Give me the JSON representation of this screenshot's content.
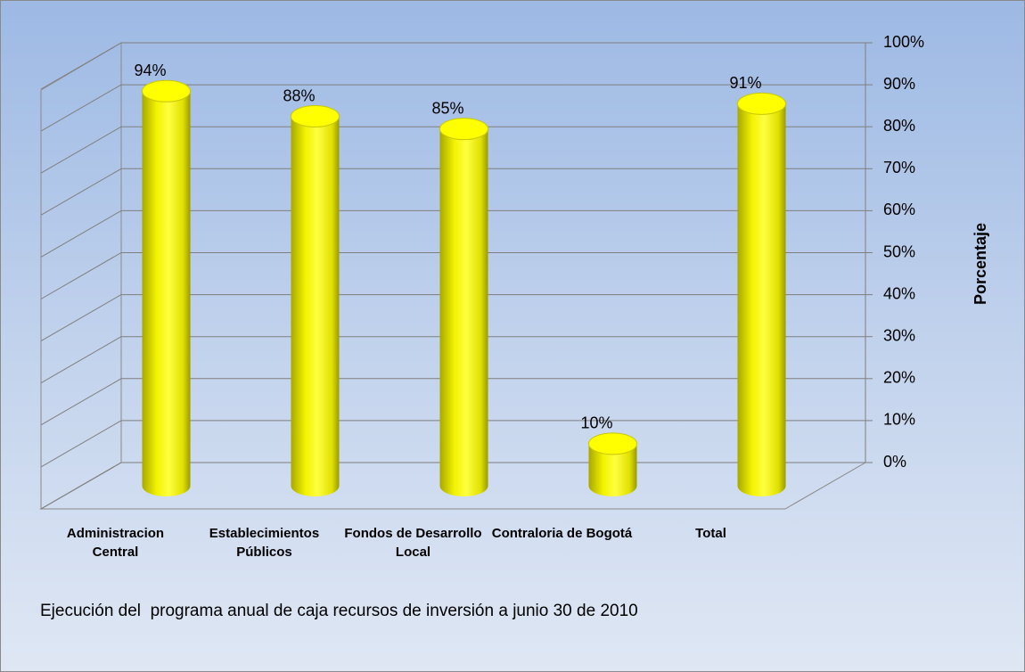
{
  "chart_data": {
    "type": "bar",
    "categories": [
      "Administracion Central",
      "Establecimientos Públicos",
      "Fondos de Desarrollo Local",
      "Contraloria de Bogotá",
      "Total"
    ],
    "values": [
      94,
      88,
      85,
      10,
      91
    ],
    "value_labels": [
      "94%",
      "88%",
      "85%",
      "10%",
      "91%"
    ],
    "color": "#ffff00",
    "ylim": [
      0,
      100
    ],
    "yticks": [
      {
        "value": 0,
        "label": "0%"
      },
      {
        "value": 10,
        "label": "10%"
      },
      {
        "value": 20,
        "label": "20%"
      },
      {
        "value": 30,
        "label": "30%"
      },
      {
        "value": 40,
        "label": "40%"
      },
      {
        "value": 50,
        "label": "50%"
      },
      {
        "value": 60,
        "label": "60%"
      },
      {
        "value": 70,
        "label": "70%"
      },
      {
        "value": 80,
        "label": "80%"
      },
      {
        "value": 90,
        "label": "90%"
      },
      {
        "value": 100,
        "label": "100%"
      }
    ],
    "y_label": "Porcentaje",
    "caption": "Ejecución del  programa anual de caja recursos de inversión a junio 30 de 2010",
    "grid": true
  }
}
